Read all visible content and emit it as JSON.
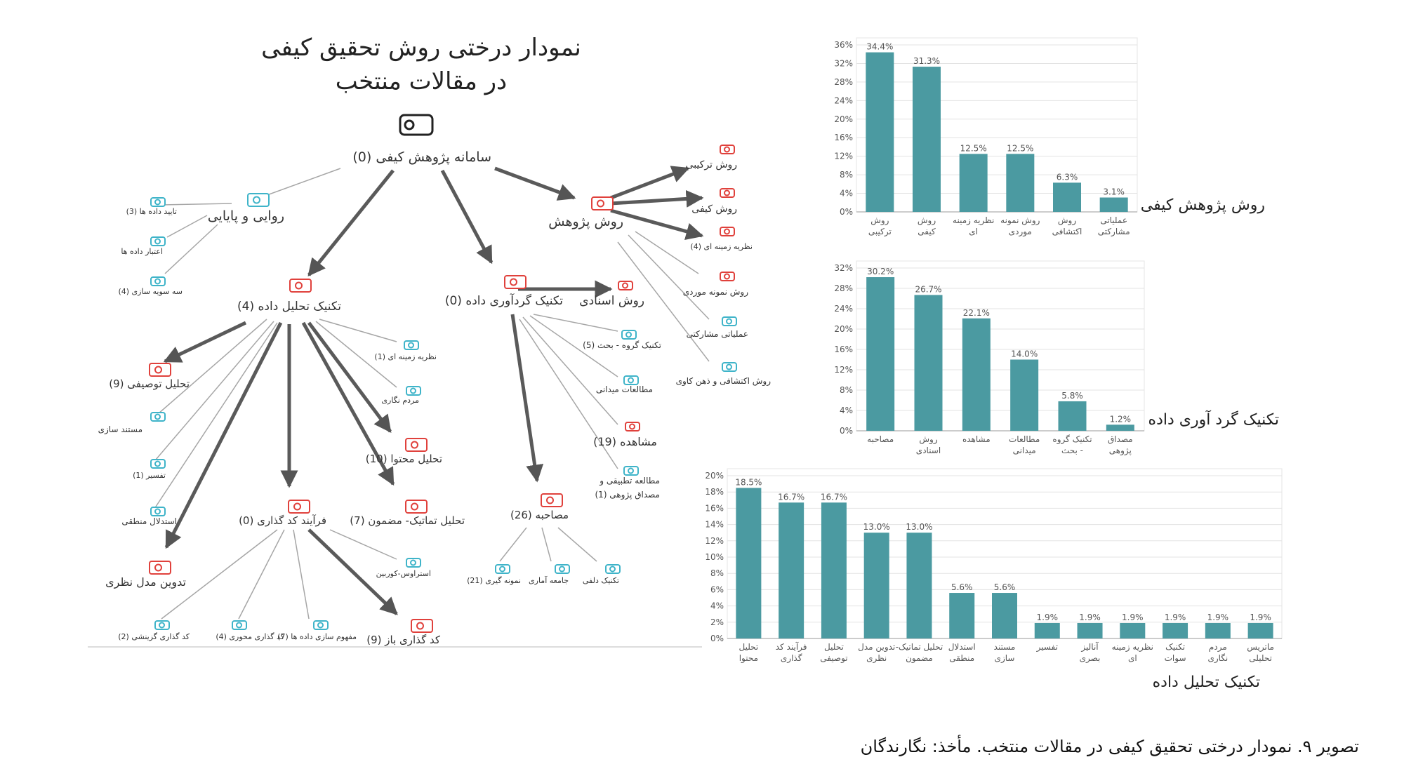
{
  "tree": {
    "title_line1": "نمودار درختی روش تحقیق کیفی",
    "title_line2": "در مقالات منتخب",
    "root_label": "سامانه پژوهش کیفی (0)",
    "nodes": {
      "validity": "روایی و پایایی",
      "v1": "تایید داده ها (3)",
      "v2": "اعتبار داده ها",
      "v3": "سه سویه سازی (4)",
      "method": "روش پژوهش",
      "m1": "روش ترکیبی",
      "m2": "روش کیفی",
      "m3": "نظریه زمینه ای (4)",
      "m4": "روش نمونه موردی",
      "m5": "عملیاتی مشارکتی",
      "m6": "روش اکتشافی و ذهن کاوی",
      "analysis": "تکنیک تحلیل داده (4)",
      "collection": "تکنیک گردآوری داده (0)",
      "a_desc": "تحلیل توصیفی (9)",
      "a_doc": "مستند سازی",
      "a_interp": "تفسیر (1)",
      "a_logic": "استدلال منطقی",
      "a_model": "تدوین مدل نظری",
      "a_grounded": "نظریه زمینه ای (1)",
      "a_ethno": "مردم نگاری",
      "a_content": "تحلیل محتوا (10)",
      "a_thematic": "تحلیل تماتیک- مضمون (7)",
      "coding": "فرآیند کد گذاری (0)",
      "c_select": "کد گذاری گزینشی (2)",
      "c_axial": "کد گذاری محوری (4)",
      "c_concept": "مفهوم سازی داده ها (7)",
      "c_open": "کد گذاری باز (9)",
      "c_strauss": "استراوس-کوربین",
      "d_doc": "روش اسنادی",
      "d_focus": "تکنیک گروه - بحث (5)",
      "d_field": "مطالعات میدانی",
      "d_obs": "مشاهده (19)",
      "d_applied": "مطالعه تطبیقی و",
      "d_applied2": "مصداق پژوهی (1)",
      "interview": "مصاحبه (26)",
      "i_sample": "نمونه گیری (21)",
      "i_pop": "جامعه آماری",
      "i_delphi": "تکنیک دلفی"
    }
  },
  "side_labels": {
    "chart1": "روش پژوهش کیفی",
    "chart2": "تکنیک گرد آوری داده",
    "chart3": "تکنیک تحلیل داده"
  },
  "caption": "تصویر ۹. نمودار درختی تحقیق کیفی در مقالات منتخب. مأخذ: نگارندگان",
  "colors": {
    "bar": "#4b9aa1",
    "grid": "#e3e3e3",
    "red_icon": "#e0413c",
    "blue_icon": "#3fb4c9",
    "arrow": "#666666"
  },
  "chart_data": [
    {
      "type": "bar",
      "categories": [
        "روش ترکیبی",
        "روش کیفی",
        "نظریه زمینه ای",
        "روش نمونه موردی",
        "روش اکتشافی",
        "عملیاتی مشارکتی"
      ],
      "values": [
        34.4,
        31.3,
        12.5,
        12.5,
        6.3,
        3.1
      ],
      "value_labels": [
        "34.4%",
        "31.3%",
        "12.5%",
        "12.5%",
        "6.3%",
        "3.1%"
      ],
      "yticks": [
        "0%",
        "4%",
        "8%",
        "12%",
        "16%",
        "20%",
        "24%",
        "28%",
        "32%",
        "36%"
      ],
      "ylim": [
        0,
        36
      ],
      "grid": true
    },
    {
      "type": "bar",
      "categories": [
        "مصاحبه",
        "روش اسنادی",
        "مشاهده",
        "مطالعات میدانی",
        "تکنیک گروه - بحث",
        "مصداق پژوهی"
      ],
      "values": [
        30.2,
        26.7,
        22.1,
        14.0,
        5.8,
        1.2
      ],
      "value_labels": [
        "30.2%",
        "26.7%",
        "22.1%",
        "14.0%",
        "5.8%",
        "1.2%"
      ],
      "yticks": [
        "0%",
        "4%",
        "8%",
        "12%",
        "16%",
        "20%",
        "24%",
        "28%",
        "32%"
      ],
      "ylim": [
        0,
        32
      ],
      "grid": true
    },
    {
      "type": "bar",
      "categories": [
        "تحلیل محتوا",
        "فرآیند کد گذاری",
        "تحلیل توصیفی",
        "تدوین مدل نظری",
        "تحلیل تماتیک- مضمون",
        "استدلال منطقی",
        "مستند سازی",
        "تفسیر",
        "آنالیز بصری",
        "نظریه زمینه ای",
        "تکنیک سوات",
        "مردم نگاری",
        "ماتریس تحلیلی"
      ],
      "values": [
        18.5,
        16.7,
        16.7,
        13.0,
        13.0,
        5.6,
        5.6,
        1.9,
        1.9,
        1.9,
        1.9,
        1.9,
        1.9
      ],
      "value_labels": [
        "18.5%",
        "16.7%",
        "16.7%",
        "13.0%",
        "13.0%",
        "5.6%",
        "5.6%",
        "1.9%",
        "1.9%",
        "1.9%",
        "1.9%",
        "1.9%",
        "1.9%"
      ],
      "yticks": [
        "0%",
        "2%",
        "4%",
        "6%",
        "8%",
        "10%",
        "12%",
        "14%",
        "16%",
        "18%",
        "20%"
      ],
      "ylim": [
        0,
        20
      ],
      "grid": true
    }
  ]
}
